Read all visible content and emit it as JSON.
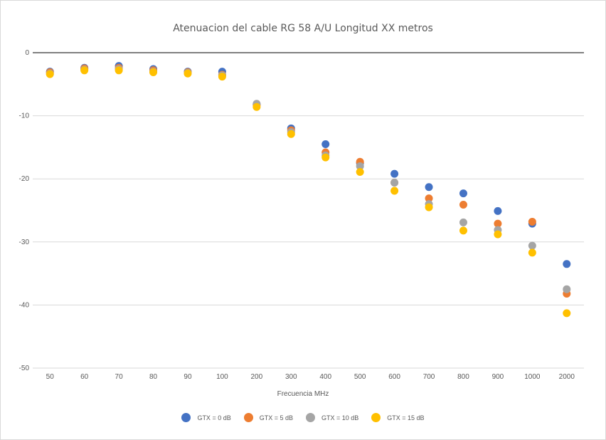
{
  "chart_data": {
    "type": "scatter",
    "title": "Atenuacion del cable RG 58 A/U Longitud XX metros",
    "xlabel": "Frecuencia MHz",
    "ylabel": "",
    "categories": [
      "50",
      "60",
      "70",
      "80",
      "90",
      "100",
      "200",
      "300",
      "400",
      "500",
      "600",
      "700",
      "800",
      "900",
      "1000",
      "2000"
    ],
    "ylim": [
      -50,
      0
    ],
    "yticks": [
      0,
      -10,
      -20,
      -30,
      -40,
      -50
    ],
    "grid": true,
    "legend_position": "bottom",
    "series": [
      {
        "name": "GTX = 0 dB",
        "color": "#4472C4",
        "values": [
          -3.0,
          -2.4,
          -2.1,
          -2.6,
          -3.0,
          -3.0,
          -8.2,
          -12.0,
          -14.5,
          -17.5,
          -19.2,
          -21.3,
          -22.3,
          -25.1,
          -27.1,
          -33.5
        ]
      },
      {
        "name": "GTX = 5 dB",
        "color": "#ED7D31",
        "values": [
          -3.1,
          -2.5,
          -2.4,
          -2.8,
          -3.1,
          -3.5,
          -8.3,
          -12.3,
          -15.8,
          -17.3,
          -20.6,
          -23.1,
          -24.1,
          -27.1,
          -26.8,
          -38.2
        ]
      },
      {
        "name": "GTX = 10 dB",
        "color": "#A5A5A5",
        "values": [
          -3.3,
          -2.7,
          -2.6,
          -3.0,
          -3.2,
          -3.6,
          -8.1,
          -12.6,
          -16.3,
          -18.0,
          -20.6,
          -24.0,
          -26.9,
          -28.1,
          -30.6,
          -37.5
        ]
      },
      {
        "name": "GTX = 15 dB",
        "color": "#FFC000",
        "values": [
          -3.4,
          -2.8,
          -2.8,
          -3.1,
          -3.3,
          -3.8,
          -8.6,
          -12.9,
          -16.6,
          -18.9,
          -21.9,
          -24.5,
          -28.2,
          -28.8,
          -31.7,
          -41.3
        ]
      }
    ]
  }
}
